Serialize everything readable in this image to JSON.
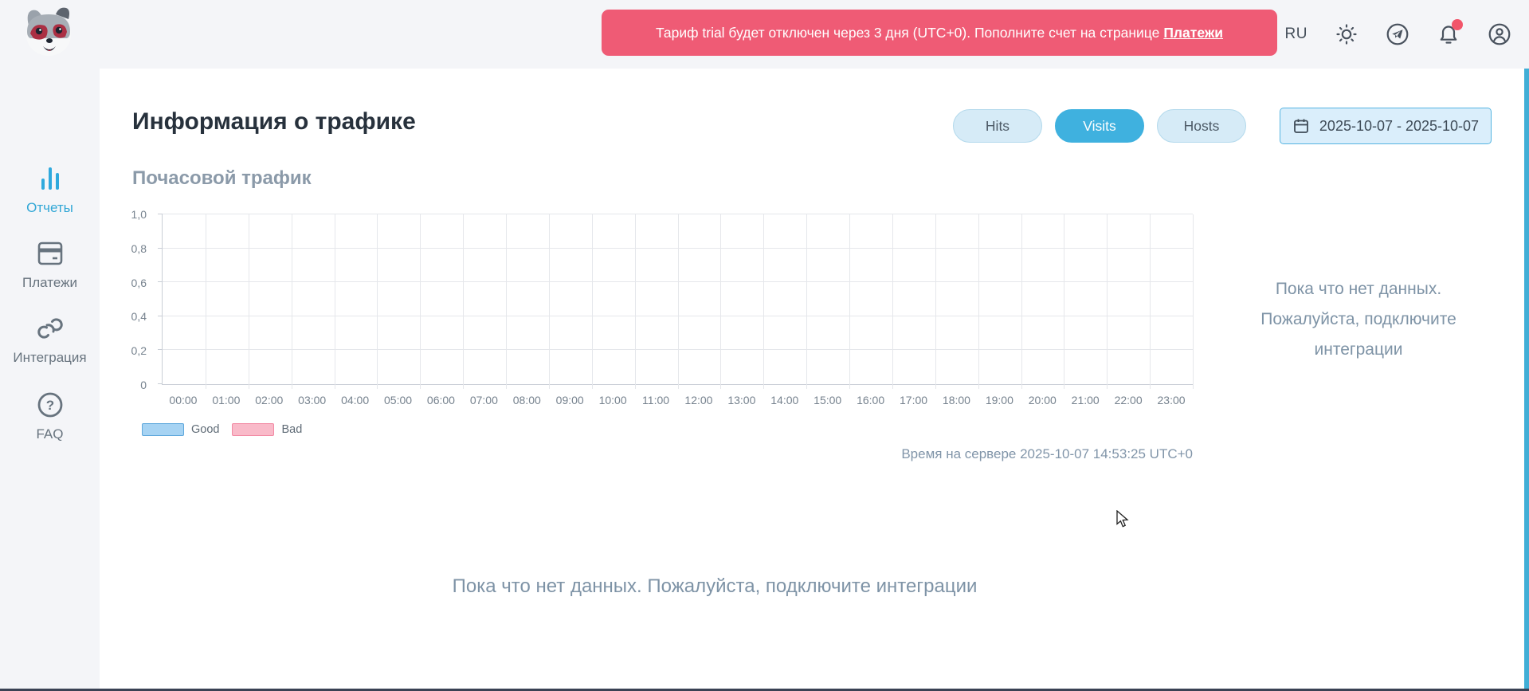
{
  "header": {
    "banner": {
      "text": "Тариф trial будет отключен через 3 дня (UTC+0). Пополните счет на странице",
      "link_label": "Платежи"
    },
    "language_label": "RU",
    "icons": {
      "logo": "raccoon-logo",
      "theme": "sun-icon",
      "messenger": "telegram-icon",
      "notifications": "bell-icon",
      "account": "user-icon"
    }
  },
  "sidebar": {
    "items": [
      {
        "label": "Отчеты",
        "icon": "bar-chart-icon",
        "active": true
      },
      {
        "label": "Платежи",
        "icon": "credit-card-icon",
        "active": false
      },
      {
        "label": "Интеграция",
        "icon": "link-icon",
        "active": false
      },
      {
        "label": "FAQ",
        "icon": "question-circle-icon",
        "active": false
      }
    ]
  },
  "main": {
    "page_title": "Информация о трафике",
    "metric_tabs": [
      {
        "label": "Hits",
        "active": false
      },
      {
        "label": "Visits",
        "active": true
      },
      {
        "label": "Hosts",
        "active": false
      }
    ],
    "date_range": "2025-10-07 - 2025-10-07",
    "section_title": "Почасовой трафик",
    "empty_state_side": "Пока что нет данных. Пожалуйста, подключите интеграции",
    "empty_state_bottom": "Пока что нет данных. Пожалуйста, подключите интеграции",
    "server_time": "Время на сервере 2025-10-07 14:53:25 UTC+0"
  },
  "chart_data": {
    "type": "bar",
    "title": "Почасовой трафик",
    "categories": [
      "00:00",
      "01:00",
      "02:00",
      "03:00",
      "04:00",
      "05:00",
      "06:00",
      "07:00",
      "08:00",
      "09:00",
      "10:00",
      "11:00",
      "12:00",
      "13:00",
      "14:00",
      "15:00",
      "16:00",
      "17:00",
      "18:00",
      "19:00",
      "20:00",
      "21:00",
      "22:00",
      "23:00"
    ],
    "series": [
      {
        "name": "Good",
        "values": [],
        "fill": "#a6d3f3",
        "border": "#5fa8dc"
      },
      {
        "name": "Bad",
        "values": [],
        "fill": "#f9bac9",
        "border": "#f28aa4"
      }
    ],
    "ylim": [
      0,
      1
    ],
    "y_ticks": [
      "0",
      "0,2",
      "0,4",
      "0,6",
      "0,8",
      "1,0"
    ],
    "grid": true,
    "legend_position": "bottom-left",
    "empty": true
  },
  "colors": {
    "accent": "#3fb1df",
    "banner": "#ef5b75",
    "notification_dot": "#f2556a",
    "scrollbar": "#41aed6",
    "header_bg": "#f4f5f8",
    "light_button_bg": "#d6ebf7",
    "date_button_border": "#55b4e1"
  }
}
